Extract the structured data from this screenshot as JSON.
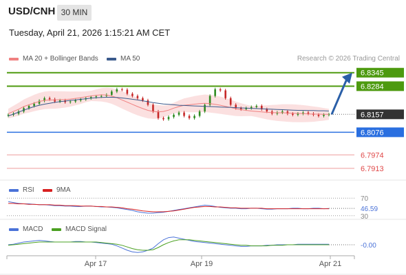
{
  "header": {
    "pair": "USD/CNH",
    "interval": "30 MIN",
    "datetime": "Tuesday, April 21, 2026 1:15:21 AM CET"
  },
  "legend": {
    "ma20_label": "MA 20 + Bollinger Bands",
    "ma50_label": "MA 50",
    "credit": "Research © 2026 Trading Central",
    "rsi_label": "RSI",
    "rsi_ma_label": "9MA",
    "macd_label": "MACD",
    "macd_signal_label": "MACD Signal"
  },
  "colors": {
    "resistance": "#4d9a0f",
    "pivot": "#2a6fe0",
    "support": "#e04848",
    "current_bg": "#333333",
    "forecast_arrow": "#2a5fa8",
    "candle_up": "#2e8b20",
    "candle_down": "#c62828",
    "ma20": "#f08080",
    "bollinger_fill": "#fbe0e0",
    "ma50": "#3a5a8c",
    "rsi": "#4a72d8",
    "rsi_ma": "#d82020",
    "macd": "#4a72d8",
    "macd_signal": "#4aa020"
  },
  "chart_data": {
    "type": "line",
    "title": "USD/CNH",
    "x_ticks": [
      "Apr 17",
      "Apr 19",
      "Apr 21"
    ],
    "ylim": [
      6.786,
      6.84
    ],
    "levels": [
      {
        "name": "resistance",
        "value": 6.8345,
        "label": "6.8345"
      },
      {
        "name": "resistance",
        "value": 6.8284,
        "label": "6.8284"
      },
      {
        "name": "current",
        "value": 6.8157,
        "label": "6.8157"
      },
      {
        "name": "pivot",
        "value": 6.8076,
        "label": "6.8076"
      },
      {
        "name": "support",
        "value": 6.7974,
        "label": "6.7974"
      },
      {
        "name": "support",
        "value": 6.7913,
        "label": "6.7913"
      }
    ],
    "forecast": {
      "from": 6.8157,
      "to": 6.8345
    },
    "price_series": [
      {
        "name": "close",
        "values": [
          6.8155,
          6.816,
          6.817,
          6.8185,
          6.8195,
          6.8205,
          6.8218,
          6.823,
          6.8225,
          6.8215,
          6.822,
          6.8212,
          6.8215,
          6.822,
          6.8225,
          6.823,
          6.8235,
          6.8238,
          6.824,
          6.8245,
          6.826,
          6.827,
          6.8268,
          6.825,
          6.824,
          6.823,
          6.822,
          6.82,
          6.817,
          6.814,
          6.8135,
          6.8145,
          6.8155,
          6.8165,
          6.815,
          6.814,
          6.815,
          6.817,
          6.82,
          6.824,
          6.827,
          6.8265,
          6.823,
          6.82,
          6.8185,
          6.818,
          6.8185,
          6.819,
          6.8195,
          6.818,
          6.817,
          6.816,
          6.8165,
          6.817,
          6.816,
          6.8155,
          6.816,
          6.8165,
          6.816,
          6.8155,
          6.815,
          6.8155,
          6.8157
        ]
      },
      {
        "name": "MA 20",
        "values": [
          6.816,
          6.817,
          6.818,
          6.8192,
          6.82,
          6.8208,
          6.8215,
          6.822,
          6.8222,
          6.8222,
          6.8223,
          6.8224,
          6.8226,
          6.8229,
          6.8232,
          6.8236,
          6.824,
          6.8243,
          6.8245,
          6.8244,
          6.824,
          6.8232,
          6.8222,
          6.8212,
          6.8202,
          6.8192,
          6.8183,
          6.8175,
          6.817,
          6.8168,
          6.817,
          6.8176,
          6.8185,
          6.8192,
          6.8198,
          6.82,
          6.8203,
          6.8205,
          6.8207,
          6.8205,
          6.8202,
          6.8198,
          6.8193,
          6.8188,
          6.8182,
          6.8178,
          6.8175,
          6.8172,
          6.817,
          6.8168,
          6.8166,
          6.8165,
          6.8164,
          6.8164,
          6.8163,
          6.8162,
          6.8161,
          6.816,
          6.8159,
          6.8158,
          6.8158,
          6.8157,
          6.8157
        ]
      },
      {
        "name": "MA 50",
        "values": [
          6.815,
          6.8158,
          6.8167,
          6.8176,
          6.8184,
          6.8192,
          6.8198,
          6.8203,
          6.8207,
          6.8211,
          6.8214,
          6.8217,
          6.822,
          6.8222,
          6.8225,
          6.8227,
          6.823,
          6.8232,
          6.8233,
          6.8234,
          6.8234,
          6.8233,
          6.8231,
          6.8228,
          6.8225,
          6.8222,
          6.8218,
          6.8214,
          6.821,
          6.8207,
          6.8204,
          6.8202,
          6.82,
          6.8198,
          6.8197,
          6.8196,
          6.8195,
          6.8194,
          6.8193,
          6.8192,
          6.8191,
          6.819,
          6.8189,
          6.8188,
          6.8187,
          6.8186,
          6.8185,
          6.8184,
          6.8183,
          6.8182,
          6.8181,
          6.818,
          6.8179,
          6.8178,
          6.8177,
          6.8176,
          6.8175,
          6.8175,
          6.8174,
          6.8174,
          6.8173,
          6.8173,
          6.8172
        ]
      }
    ],
    "rsi": {
      "levels": [
        70,
        30
      ],
      "value_label": "46.59",
      "level_labels": [
        "70",
        "30"
      ],
      "values": [
        62,
        60,
        58,
        57,
        57,
        56,
        55,
        55,
        54,
        53,
        53,
        52,
        52,
        51,
        51,
        52,
        52,
        51,
        50,
        50,
        49,
        48,
        46,
        44,
        42,
        39,
        37,
        36,
        36,
        37,
        38,
        40,
        42,
        44,
        46,
        48,
        50,
        52,
        54,
        53,
        51,
        49,
        48,
        47,
        47,
        46,
        46,
        47,
        47,
        46,
        45,
        45,
        46,
        46,
        46,
        47,
        47,
        46,
        46,
        47,
        47,
        46,
        46.59
      ],
      "ma_values": [
        58,
        58,
        57,
        57,
        56,
        56,
        55,
        55,
        55,
        54,
        54,
        53,
        53,
        53,
        52,
        52,
        52,
        51,
        51,
        50,
        50,
        49,
        48,
        46,
        45,
        43,
        41,
        40,
        39,
        39,
        39,
        40,
        41,
        43,
        45,
        47,
        49,
        50,
        51,
        51,
        50,
        50,
        49,
        48,
        48,
        47,
        47,
        47,
        47,
        47,
        46,
        46,
        46,
        46,
        46,
        46,
        46,
        46,
        46,
        46,
        46,
        46,
        46
      ]
    },
    "macd": {
      "value_label": "-0.00",
      "macd_values": [
        0.0,
        0.1,
        0.3,
        0.5,
        0.6,
        0.7,
        0.8,
        0.7,
        0.6,
        0.5,
        0.5,
        0.5,
        0.5,
        0.6,
        0.6,
        0.5,
        0.5,
        0.4,
        0.3,
        0.2,
        0.1,
        -0.2,
        -0.6,
        -1.0,
        -1.3,
        -1.4,
        -1.3,
        -1.0,
        -0.6,
        0.2,
        0.9,
        1.3,
        1.4,
        1.2,
        1.0,
        0.8,
        0.6,
        0.5,
        0.4,
        0.3,
        0.2,
        0.1,
        0.0,
        -0.1,
        -0.2,
        -0.3,
        -0.3,
        -0.2,
        -0.2,
        -0.2,
        -0.1,
        -0.1,
        0.0,
        0.0,
        0.0,
        0.0,
        0.1,
        0.1,
        0.1,
        0.1,
        0.1,
        0.1,
        0.1
      ],
      "signal_values": [
        -0.1,
        0.0,
        0.1,
        0.2,
        0.3,
        0.4,
        0.5,
        0.5,
        0.5,
        0.5,
        0.5,
        0.5,
        0.5,
        0.5,
        0.5,
        0.5,
        0.5,
        0.5,
        0.4,
        0.3,
        0.2,
        0.1,
        -0.1,
        -0.4,
        -0.7,
        -0.9,
        -1.0,
        -1.0,
        -0.9,
        -0.5,
        0.0,
        0.4,
        0.7,
        0.9,
        0.9,
        0.9,
        0.8,
        0.7,
        0.6,
        0.5,
        0.4,
        0.3,
        0.2,
        0.1,
        0.0,
        -0.1,
        -0.1,
        -0.2,
        -0.2,
        -0.2,
        -0.2,
        -0.1,
        -0.1,
        -0.1,
        0.0,
        0.0,
        0.0,
        0.0,
        0.0,
        0.0,
        0.0,
        0.0,
        0.0
      ],
      "ylim": [
        -2,
        2
      ]
    }
  }
}
